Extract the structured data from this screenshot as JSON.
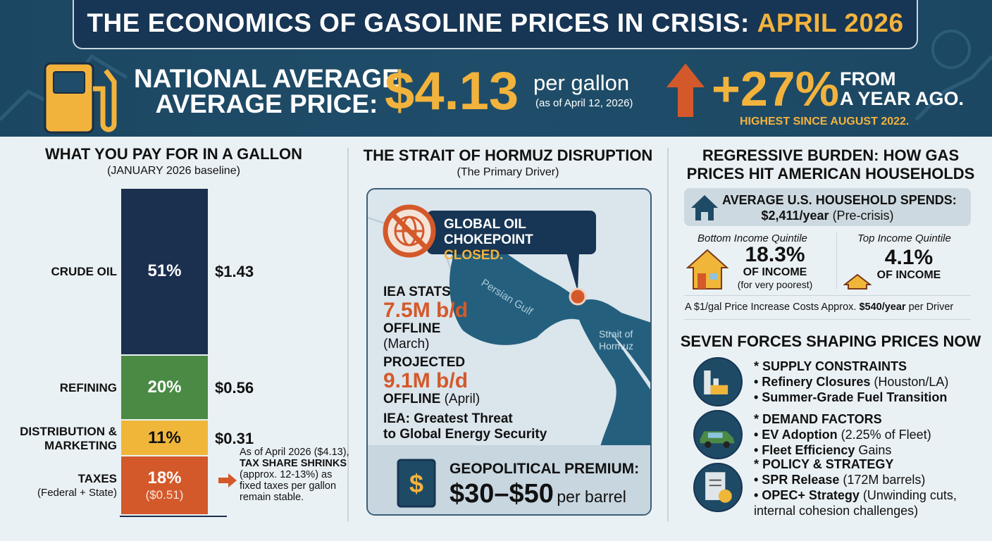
{
  "header": {
    "title_main": "THE ECONOMICS OF GASOLINE PRICES IN CRISIS: ",
    "title_accent": "APRIL 2026",
    "label_line1": "NATIONAL AVERAGE",
    "label_line2": "AVERAGE PRICE:",
    "price": "$4.13",
    "unit": "per gallon",
    "as_of": "(as of April 12, 2026)",
    "change": "+27%",
    "change_line1": "FROM",
    "change_line2": "A YEAR AGO.",
    "highest": "HIGHEST SINCE AUGUST 2022.",
    "icons": [
      "fuel-pump-icon",
      "arrow-up-icon"
    ],
    "colors": {
      "navy": "#1c4763",
      "gold": "#f2b33d",
      "orange": "#d4592a"
    }
  },
  "gallon": {
    "title": "WHAT YOU PAY FOR IN A GALLON",
    "subtitle": "(JANUARY 2026 baseline)",
    "segments": [
      {
        "label": "CRUDE OIL",
        "sub": "",
        "pct": 51,
        "pct_label": "51%",
        "value": "$1.43",
        "sub_value": "",
        "color": "#1b2f4f",
        "text": "#fff"
      },
      {
        "label": "REFINING",
        "sub": "",
        "pct": 20,
        "pct_label": "20%",
        "value": "$0.56",
        "sub_value": "",
        "color": "#4a8a45",
        "text": "#fff"
      },
      {
        "label": "DISTRIBUTION & MARKETING",
        "sub": "",
        "pct": 11,
        "pct_label": "11%",
        "value": "$0.31",
        "sub_value": "",
        "color": "#f0b63a",
        "text": "#111"
      },
      {
        "label": "TAXES",
        "sub": "(Federal + State)",
        "pct": 18,
        "pct_label": "18%",
        "value": "",
        "sub_value": "($0.51)",
        "color": "#d4592a",
        "text": "#fff"
      }
    ],
    "note_line1": "As of April 2026 ($4.13),",
    "note_bold": "TAX SHARE SHRINKS",
    "note_rest": "(approx. 12-13%) as fixed taxes per gallon remain stable."
  },
  "hormuz": {
    "title": "THE STRAIT OF HORMUZ DISRUPTION",
    "subtitle": "(The Primary Driver)",
    "callout_line1": "GLOBAL OIL",
    "callout_line2": "CHOKEPOINT ",
    "callout_accent": "CLOSED.",
    "map_labels": {
      "gulf": "Persian Gulf",
      "strait_1": "Strait of",
      "strait_2": "Hormuz"
    },
    "stats": {
      "head": "IEA STATS",
      "march_value": "7.5M b/d",
      "march_offline": "OFFLINE",
      "march_period": "(March)",
      "projected": "PROJECTED",
      "april_value": "9.1M b/d",
      "april_offline": "OFFLINE",
      "april_period": "(April)",
      "threat_1": "IEA: Greatest Threat",
      "threat_2": "to Global Energy Security"
    },
    "premium": {
      "label": "GEOPOLITICAL PREMIUM:",
      "value": "$30–$50",
      "unit": "per barrel"
    }
  },
  "burden": {
    "title_1": "REGRESSIVE BURDEN: HOW GAS",
    "title_2": "PRICES HIT AMERICAN HOUSEHOLDS",
    "avg_label": "AVERAGE U.S. HOUSEHOLD SPENDS:",
    "avg_value": "$2,411/year",
    "avg_note": "(Pre-crisis)",
    "bottom": {
      "label": "Bottom Income Quintile",
      "pct": "18.3%",
      "of": "OF INCOME",
      "note": "(for very poorest)"
    },
    "top": {
      "label": "Top Income Quintile",
      "pct": "4.1%",
      "of": "OF INCOME"
    },
    "cost_pre": "A $1/gal Price Increase Costs Approx. ",
    "cost_bold": "$540/year",
    "cost_post": " per Driver"
  },
  "forces": {
    "title": "SEVEN FORCES SHAPING PRICES NOW",
    "groups": [
      {
        "icon": "refinery-icon",
        "head": "* SUPPLY CONSTRAINTS",
        "items": [
          {
            "bold": "• Refinery Closures",
            "rest": " (Houston/LA)"
          },
          {
            "bold": "• Summer-Grade Fuel Transition",
            "rest": ""
          }
        ]
      },
      {
        "icon": "electric-car-icon",
        "head": "* DEMAND FACTORS",
        "items": [
          {
            "bold": "• EV Adoption",
            "rest": " (2.25% of Fleet)"
          },
          {
            "bold": "• Fleet Efficiency",
            "rest": " Gains"
          }
        ]
      },
      {
        "icon": "policy-document-icon",
        "head": "* POLICY & STRATEGY",
        "items": [
          {
            "bold": "• SPR Release",
            "rest": " (172M barrels)"
          },
          {
            "bold": "• OPEC+ Strategy",
            "rest": " (Unwinding cuts, internal cohesion challenges)"
          }
        ]
      }
    ]
  }
}
